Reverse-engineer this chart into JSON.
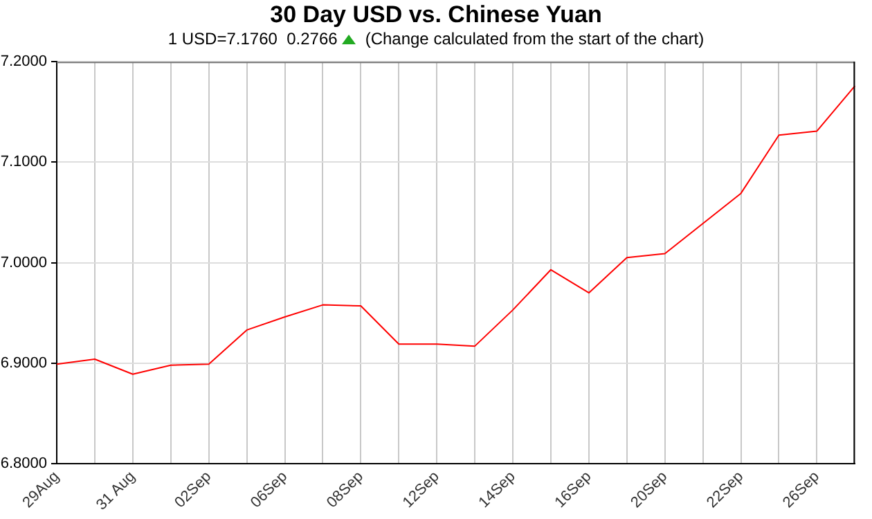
{
  "chart_data": {
    "type": "line",
    "title": "30 Day USD vs. Chinese Yuan",
    "subtitle": "1 USD=7.1760  0.2766",
    "annotations": [
      "(Change calculated from the start of the chart)"
    ],
    "categories": [
      "29Aug",
      null,
      "31 Aug",
      null,
      "02Sep",
      null,
      "06Sep",
      null,
      "08Sep",
      null,
      "12Sep",
      null,
      "14Sep",
      null,
      "16Sep",
      null,
      "20Sep",
      null,
      "22Sep",
      null,
      "26Sep",
      null
    ],
    "series": [
      {
        "color": "#ff0000",
        "values": [
          6.899,
          6.904,
          6.889,
          6.898,
          6.899,
          6.933,
          6.946,
          6.958,
          6.957,
          6.919,
          6.919,
          6.917,
          6.953,
          6.993,
          6.97,
          7.005,
          7.009,
          7.039,
          7.069,
          7.127,
          7.131,
          7.176
        ]
      }
    ],
    "ylim": [
      6.8,
      7.2
    ],
    "yticks": [
      {
        "value": 6.8,
        "label": "6.8000"
      },
      {
        "value": 6.9,
        "label": "6.9000"
      },
      {
        "value": 7.0,
        "label": "7.0000"
      },
      {
        "value": 7.1,
        "label": "7.1000"
      },
      {
        "value": 7.2,
        "label": "7.2000"
      }
    ],
    "grid": true,
    "legend": false,
    "marker": "none",
    "line_style": "solid"
  }
}
